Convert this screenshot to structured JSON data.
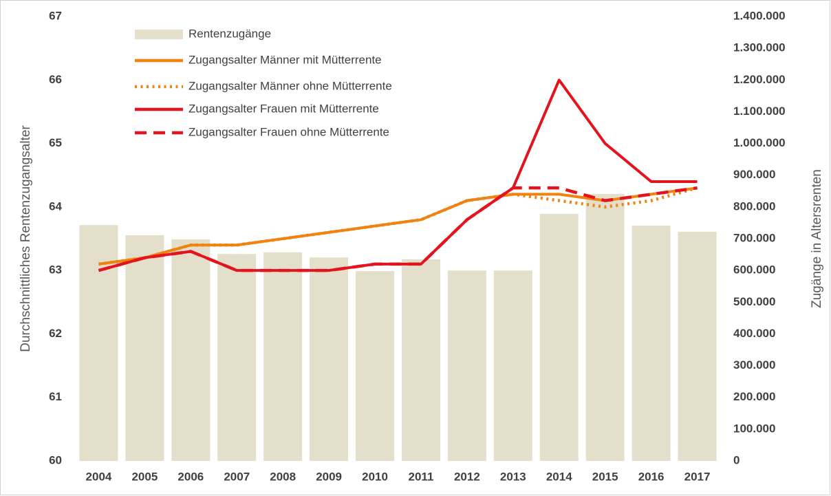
{
  "chart_data": {
    "type": "combo",
    "ylabel": "Durchschnittliches Rentenzugangsalter",
    "y2label": "Zugänge in Altersrenten",
    "categories": [
      "2004",
      "2005",
      "2006",
      "2007",
      "2008",
      "2009",
      "2010",
      "2011",
      "2012",
      "2013",
      "2014",
      "2015",
      "2016",
      "2017"
    ],
    "ylim": [
      60,
      67
    ],
    "yticks": [
      60,
      61,
      62,
      63,
      64,
      65,
      66,
      67
    ],
    "y2lim": [
      0,
      1400000
    ],
    "y2ticks": [
      0,
      {
        "value": 100000,
        "label": "100.000"
      },
      {
        "value": 200000,
        "label": "200.000"
      },
      {
        "value": 300000,
        "label": "300.000"
      },
      {
        "value": 400000,
        "label": "400.000"
      },
      {
        "value": 500000,
        "label": "500.000"
      },
      {
        "value": 600000,
        "label": "600.000"
      },
      {
        "value": 700000,
        "label": "700.000"
      },
      {
        "value": 800000,
        "label": "800.000"
      },
      {
        "value": 900000,
        "label": "900.000"
      },
      {
        "value": 1000000,
        "label": "1.000.000"
      },
      {
        "value": 1100000,
        "label": "1.100.000"
      },
      {
        "value": 1200000,
        "label": "1.200.000"
      },
      {
        "value": 1300000,
        "label": "1.300.000"
      },
      {
        "value": 1400000,
        "label": "1.400.000"
      }
    ],
    "series": [
      {
        "name": "Rentenzugänge",
        "type": "bar",
        "axis": "y2",
        "color": "#e3dfcb",
        "values": [
          743000,
          711000,
          698000,
          652000,
          657000,
          641000,
          598000,
          635000,
          600000,
          600000,
          778000,
          841000,
          741000,
          722000
        ]
      },
      {
        "name": "Zugangsalter Männer mit Mütterrente",
        "type": "line",
        "line_style": "solid",
        "color": "#f0820f",
        "values": [
          63.1,
          63.2,
          63.4,
          63.4,
          63.5,
          63.6,
          63.7,
          63.8,
          64.1,
          64.2,
          64.2,
          64.1,
          64.2,
          64.3
        ]
      },
      {
        "name": "Zugangsalter Männer ohne Mütterrente",
        "type": "line",
        "line_style": "dotted",
        "color": "#f0820f",
        "values": [
          63.1,
          63.2,
          63.4,
          63.4,
          63.5,
          63.6,
          63.7,
          63.8,
          64.1,
          64.2,
          64.1,
          64.0,
          64.1,
          64.3
        ]
      },
      {
        "name": "Zugangsalter Frauen mit Mütterrente",
        "type": "line",
        "line_style": "solid",
        "color": "#e3141e",
        "values": [
          63.0,
          63.2,
          63.3,
          63.0,
          63.0,
          63.0,
          63.1,
          63.1,
          63.8,
          64.3,
          66.0,
          65.0,
          64.4,
          64.4
        ]
      },
      {
        "name": "Zugangsalter Frauen ohne Mütterrente",
        "type": "line",
        "line_style": "dashed",
        "color": "#e3141e",
        "values": [
          63.0,
          63.2,
          63.3,
          63.0,
          63.0,
          63.0,
          63.1,
          63.1,
          63.8,
          64.3,
          64.3,
          64.1,
          64.2,
          64.3
        ]
      }
    ]
  }
}
